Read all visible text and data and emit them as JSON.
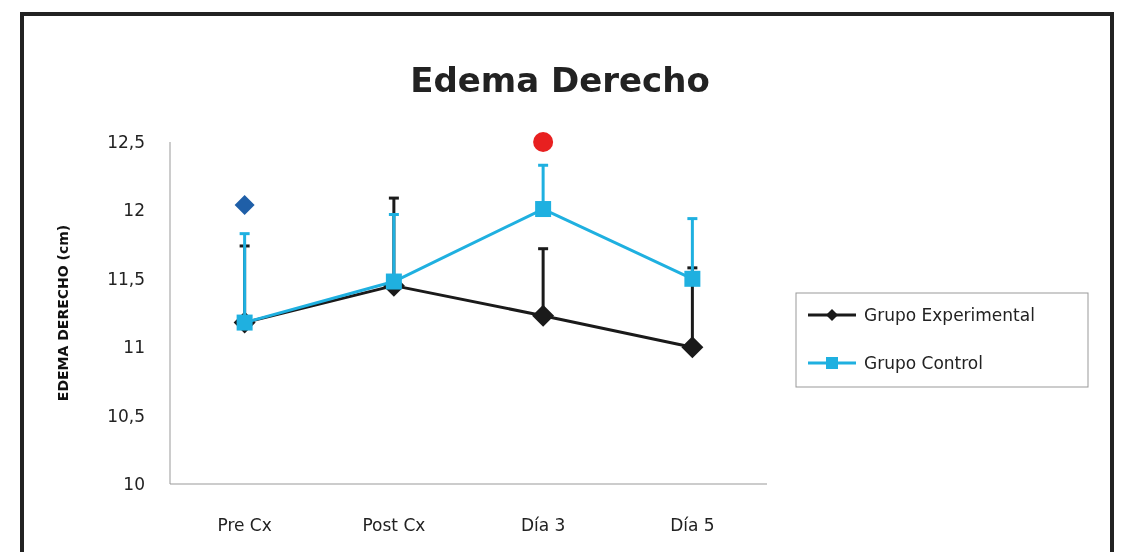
{
  "chart_data": {
    "type": "line",
    "title": "Edema Derecho",
    "ylabel": "EDEMA DERECHO (cm)",
    "categories": [
      "Pre Cx",
      "Post Cx",
      "Día 3",
      "Día 5"
    ],
    "ylim": [
      10,
      12.5
    ],
    "yticks": [
      10,
      {
        "value": 10.5,
        "label": "10,5"
      },
      11,
      {
        "value": 11.5,
        "label": "11,5"
      },
      12,
      {
        "value": 12.5,
        "label": "12,5"
      }
    ],
    "grid": false,
    "legend": "right",
    "series": [
      {
        "name": "Grupo Experimental",
        "color": "#1a1a1a",
        "marker": "diamond",
        "values": [
          11.18,
          11.45,
          11.23,
          11.0
        ],
        "errors": [
          [
            11.18,
            11.74
          ],
          [
            11.45,
            12.09
          ],
          [
            11.23,
            11.72
          ],
          [
            11.0,
            11.58
          ]
        ]
      },
      {
        "name": "Grupo Control",
        "color": "#1fb0e0",
        "marker": "square",
        "values": [
          11.18,
          11.48,
          12.01,
          11.5
        ],
        "errors": [
          [
            11.18,
            11.83
          ],
          [
            11.48,
            11.97
          ],
          [
            12.01,
            12.33
          ],
          [
            11.5,
            11.94
          ]
        ]
      },
      {
        "type": "scatter",
        "color": "#1f5fa8",
        "marker": "diamond",
        "x": [
          "Pre Cx"
        ],
        "values": [
          12.04
        ]
      },
      {
        "type": "scatter",
        "color": "#e82020",
        "marker": "circle",
        "x": [
          "Día 3"
        ],
        "values": [
          12.5
        ]
      }
    ]
  }
}
